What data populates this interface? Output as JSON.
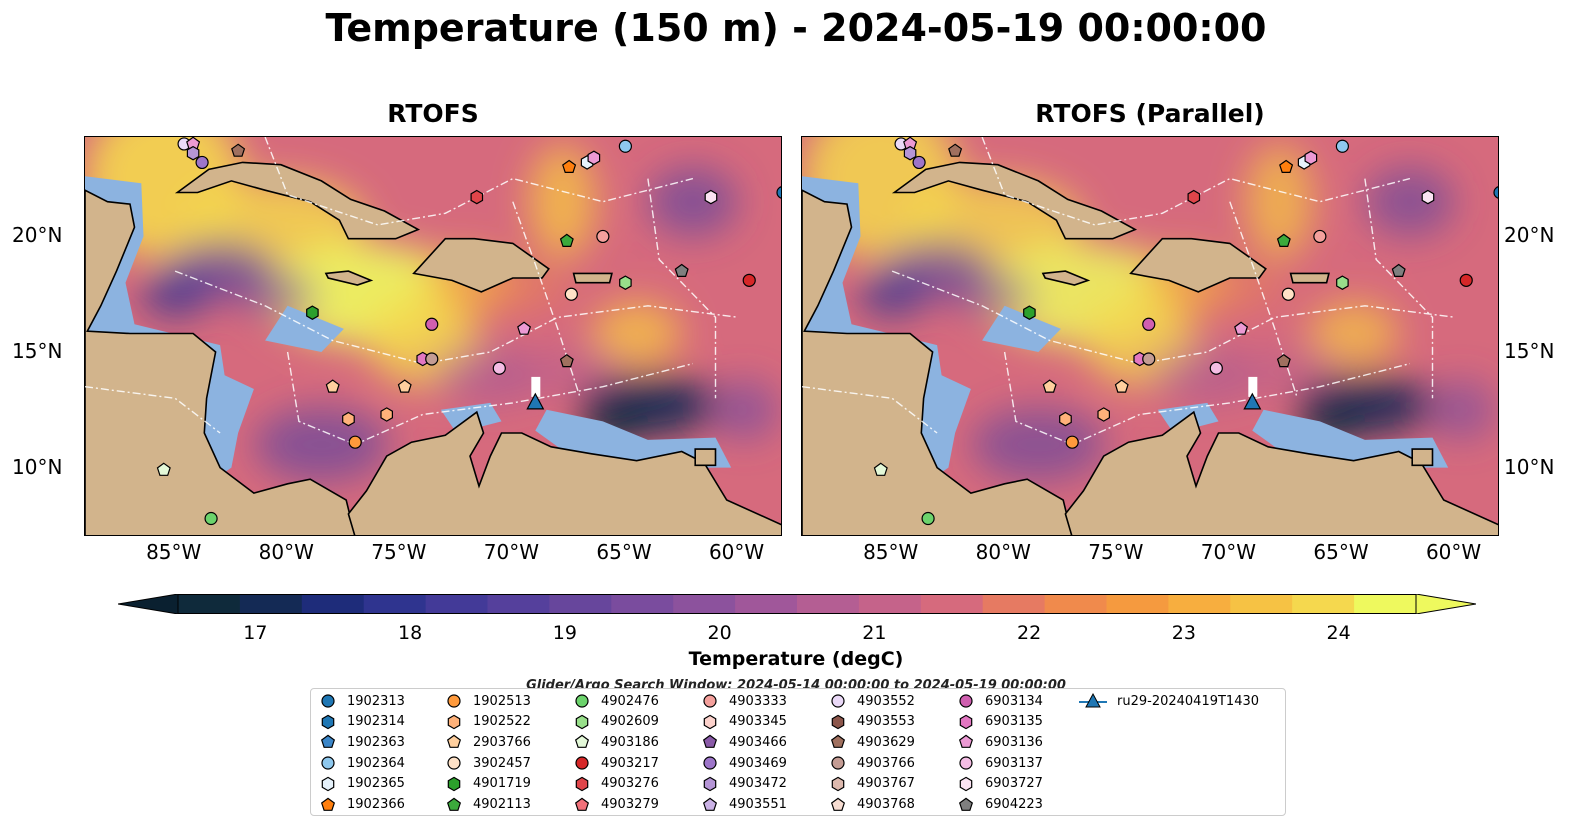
{
  "title": "Temperature (150 m) - 2024-05-19 00:00:00",
  "panels": [
    {
      "title": "RTOFS"
    },
    {
      "title": "RTOFS (Parallel)"
    }
  ],
  "map_extent": {
    "lon": [
      -89,
      -58
    ],
    "lat": [
      7,
      24.3
    ]
  },
  "lon_ticks": [
    "85°W",
    "80°W",
    "75°W",
    "70°W",
    "65°W",
    "60°W"
  ],
  "lat_ticks": [
    "20°N",
    "15°N",
    "10°N"
  ],
  "colorbar": {
    "label": "Temperature (degC)",
    "range": [
      16.5,
      24.5
    ],
    "ticks": [
      "17",
      "18",
      "19",
      "20",
      "21",
      "22",
      "23",
      "24"
    ],
    "colors": [
      "#0f2a3b",
      "#142a55",
      "#1e2c7a",
      "#2f348f",
      "#433a98",
      "#55409c",
      "#67469c",
      "#7a4c9e",
      "#8c529d",
      "#a0579a",
      "#b45e93",
      "#c5638a",
      "#d66a7d",
      "#e67a62",
      "#f08a4c",
      "#f59a3f",
      "#f7ae3f",
      "#f6c244",
      "#f5d84e",
      "#eef95e"
    ],
    "extend_colors": {
      "under": "#0a2030",
      "over": "#eef95e"
    }
  },
  "search_window": "Glider/Argo Search Window: 2024-05-14 00:00:00 to 2024-05-19 00:00:00",
  "legend": [
    {
      "id": "1902313",
      "shape": "circle",
      "color": "#1f77b4"
    },
    {
      "id": "1902314",
      "shape": "hexagon",
      "color": "#1f77b4"
    },
    {
      "id": "1902363",
      "shape": "pentagon",
      "color": "#3b86c8"
    },
    {
      "id": "1902364",
      "shape": "circle",
      "color": "#8ec8ee"
    },
    {
      "id": "1902365",
      "shape": "hexagon",
      "color": "#e6f2fb"
    },
    {
      "id": "1902366",
      "shape": "pentagon",
      "color": "#ff7f0e"
    },
    {
      "id": "1902513",
      "shape": "circle",
      "color": "#ff9a3c"
    },
    {
      "id": "1902522",
      "shape": "hexagon",
      "color": "#ffb27a"
    },
    {
      "id": "2903766",
      "shape": "pentagon",
      "color": "#ffcf9e"
    },
    {
      "id": "3902457",
      "shape": "circle",
      "color": "#ffe2c7"
    },
    {
      "id": "4901719",
      "shape": "hexagon",
      "color": "#2ca02c"
    },
    {
      "id": "4902113",
      "shape": "pentagon",
      "color": "#3caa3c"
    },
    {
      "id": "4902476",
      "shape": "circle",
      "color": "#6cd36c"
    },
    {
      "id": "4902609",
      "shape": "hexagon",
      "color": "#98df8a"
    },
    {
      "id": "4903186",
      "shape": "pentagon",
      "color": "#e4f9d9"
    },
    {
      "id": "4903217",
      "shape": "circle",
      "color": "#d62728"
    },
    {
      "id": "4903276",
      "shape": "hexagon",
      "color": "#e0454a"
    },
    {
      "id": "4903279",
      "shape": "pentagon",
      "color": "#f2717a"
    },
    {
      "id": "4903333",
      "shape": "circle",
      "color": "#f4a09c"
    },
    {
      "id": "4903345",
      "shape": "hexagon",
      "color": "#fcd2cc"
    },
    {
      "id": "4903466",
      "shape": "pentagon",
      "color": "#8a5aa8"
    },
    {
      "id": "4903469",
      "shape": "circle",
      "color": "#9d75c9"
    },
    {
      "id": "4903472",
      "shape": "hexagon",
      "color": "#b595d6"
    },
    {
      "id": "4903551",
      "shape": "pentagon",
      "color": "#cbb2e6"
    },
    {
      "id": "4903552",
      "shape": "circle",
      "color": "#ead9f7"
    },
    {
      "id": "4903553",
      "shape": "hexagon",
      "color": "#8c564b"
    },
    {
      "id": "4903629",
      "shape": "pentagon",
      "color": "#a0705f"
    },
    {
      "id": "4903766",
      "shape": "circle",
      "color": "#c49c94"
    },
    {
      "id": "4903767",
      "shape": "hexagon",
      "color": "#ddb9ae"
    },
    {
      "id": "4903768",
      "shape": "pentagon",
      "color": "#f7ddd2"
    },
    {
      "id": "6903134",
      "shape": "circle",
      "color": "#d05fb0"
    },
    {
      "id": "6903135",
      "shape": "hexagon",
      "color": "#e377c2"
    },
    {
      "id": "6903136",
      "shape": "pentagon",
      "color": "#ec9ad4"
    },
    {
      "id": "6903137",
      "shape": "circle",
      "color": "#f4bde4"
    },
    {
      "id": "6903727",
      "shape": "hexagon",
      "color": "#fbe3f3"
    },
    {
      "id": "6904223",
      "shape": "pentagon",
      "color": "#7f7f7f"
    },
    {
      "id": "ru29-20240419T1430",
      "shape": "triangle-line",
      "color": "#1f77b4"
    }
  ],
  "markers": [
    {
      "lon": -84.6,
      "lat": 24.0,
      "shape": "circle",
      "color": "#ead9f7"
    },
    {
      "lon": -84.2,
      "lat": 24.0,
      "shape": "pentagon",
      "color": "#ec9ad4"
    },
    {
      "lon": -84.2,
      "lat": 23.6,
      "shape": "hexagon",
      "color": "#b595d6"
    },
    {
      "lon": -83.8,
      "lat": 23.2,
      "shape": "circle",
      "color": "#9d75c9"
    },
    {
      "lon": -82.2,
      "lat": 23.7,
      "shape": "pentagon",
      "color": "#a0705f"
    },
    {
      "lon": -67.5,
      "lat": 23.0,
      "shape": "pentagon",
      "color": "#ff7f0e"
    },
    {
      "lon": -66.7,
      "lat": 23.2,
      "shape": "hexagon",
      "color": "#e6f2fb"
    },
    {
      "lon": -66.4,
      "lat": 23.4,
      "shape": "hexagon",
      "color": "#ec9ad4"
    },
    {
      "lon": -65.0,
      "lat": 23.9,
      "shape": "circle",
      "color": "#8ec8ee"
    },
    {
      "lon": -58.0,
      "lat": 21.9,
      "shape": "circle",
      "color": "#1f77b4"
    },
    {
      "lon": -71.6,
      "lat": 21.7,
      "shape": "hexagon",
      "color": "#e0454a"
    },
    {
      "lon": -61.2,
      "lat": 21.7,
      "shape": "hexagon",
      "color": "#fbe3f3"
    },
    {
      "lon": -67.6,
      "lat": 19.8,
      "shape": "pentagon",
      "color": "#3caa3c"
    },
    {
      "lon": -66.0,
      "lat": 20.0,
      "shape": "circle",
      "color": "#f4a09c"
    },
    {
      "lon": -62.5,
      "lat": 18.5,
      "shape": "pentagon",
      "color": "#7f7f7f"
    },
    {
      "lon": -65.0,
      "lat": 18.0,
      "shape": "hexagon",
      "color": "#98df8a"
    },
    {
      "lon": -59.5,
      "lat": 18.1,
      "shape": "circle",
      "color": "#d62728"
    },
    {
      "lon": -67.4,
      "lat": 17.5,
      "shape": "circle",
      "color": "#ffe2c7"
    },
    {
      "lon": -78.9,
      "lat": 16.7,
      "shape": "hexagon",
      "color": "#2ca02c"
    },
    {
      "lon": -73.6,
      "lat": 16.2,
      "shape": "circle",
      "color": "#d05fb0"
    },
    {
      "lon": -69.5,
      "lat": 16.0,
      "shape": "pentagon",
      "color": "#ec9ad4"
    },
    {
      "lon": -74.0,
      "lat": 14.7,
      "shape": "hexagon",
      "color": "#e377c2"
    },
    {
      "lon": -73.6,
      "lat": 14.7,
      "shape": "circle",
      "color": "#c49c94"
    },
    {
      "lon": -70.6,
      "lat": 14.3,
      "shape": "circle",
      "color": "#f4bde4"
    },
    {
      "lon": -67.6,
      "lat": 14.6,
      "shape": "pentagon",
      "color": "#a0705f"
    },
    {
      "lon": -78.0,
      "lat": 13.5,
      "shape": "pentagon",
      "color": "#ffcf9e"
    },
    {
      "lon": -74.8,
      "lat": 13.5,
      "shape": "pentagon",
      "color": "#ffcf9e"
    },
    {
      "lon": -77.3,
      "lat": 12.1,
      "shape": "hexagon",
      "color": "#ffb27a"
    },
    {
      "lon": -75.6,
      "lat": 12.3,
      "shape": "hexagon",
      "color": "#ffb27a"
    },
    {
      "lon": -77.0,
      "lat": 11.1,
      "shape": "circle",
      "color": "#ff9a3c"
    },
    {
      "lon": -85.5,
      "lat": 9.9,
      "shape": "pentagon",
      "color": "#e4f9d9"
    },
    {
      "lon": -83.4,
      "lat": 7.8,
      "shape": "circle",
      "color": "#6cd36c"
    },
    {
      "lon": -69.0,
      "lat": 12.8,
      "shape": "triangle",
      "color": "#1f77b4"
    }
  ]
}
